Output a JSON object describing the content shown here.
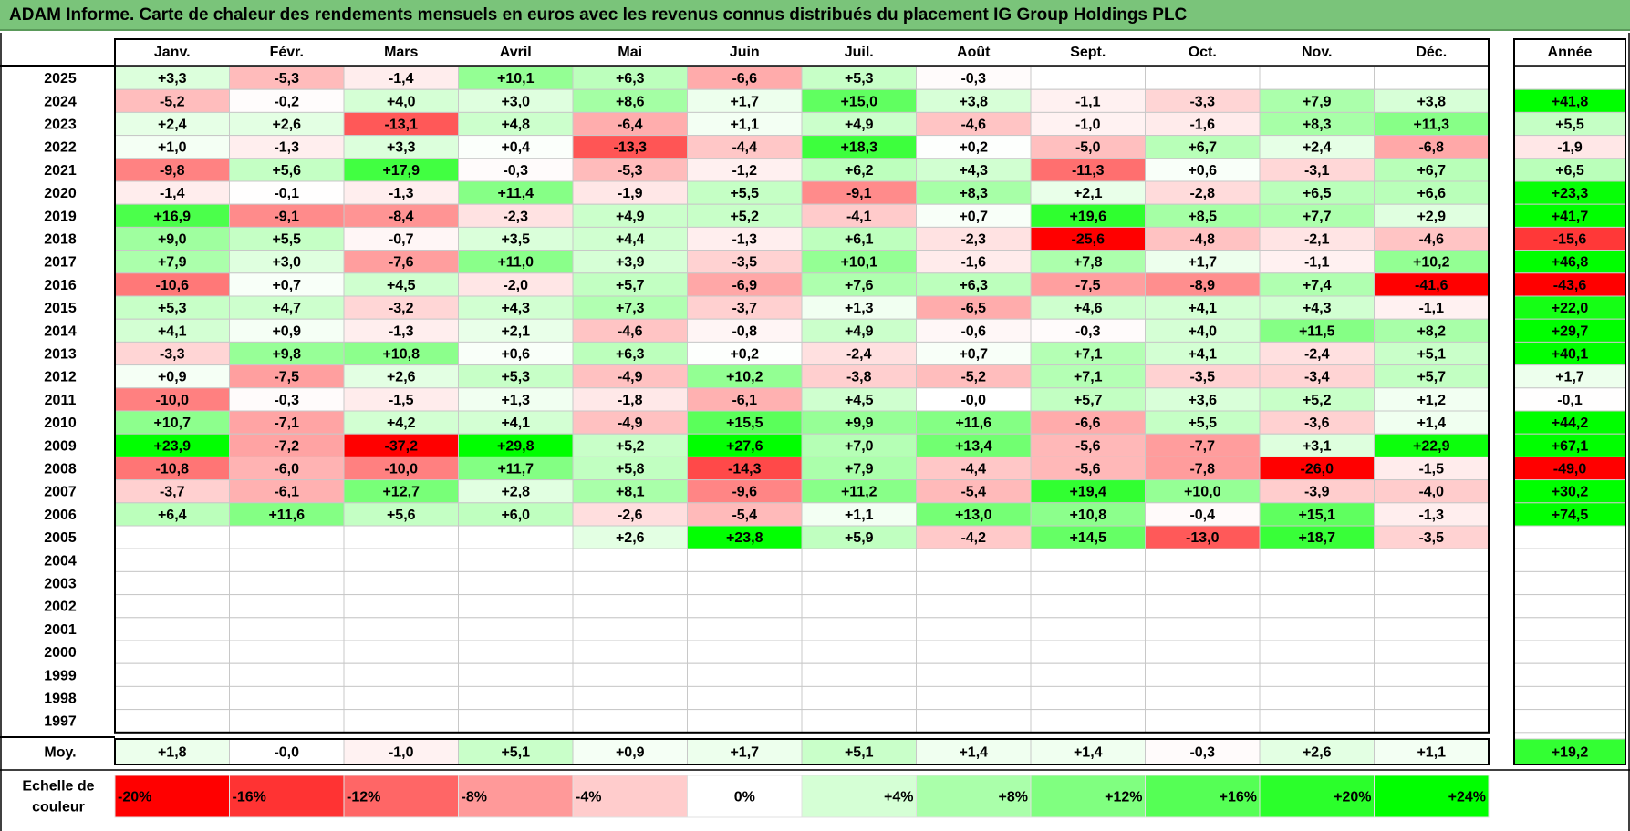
{
  "title": "ADAM Informe. Carte de chaleur des rendements mensuels en euros avec les revenus connus distribués du placement IG Group Holdings PLC",
  "months": [
    "Janv.",
    "Févr.",
    "Mars",
    "Avril",
    "Mai",
    "Juin",
    "Juil.",
    "Août",
    "Sept.",
    "Oct.",
    "Nov.",
    "Déc."
  ],
  "year_column_label": "Année",
  "avg_row_label": "Moy.",
  "scale_label_line1": "Echelle de",
  "scale_label_line2": "couleur",
  "colors": {
    "negative_max": "#ff0000",
    "neutral": "#ffffff",
    "positive_max": "#00ff00",
    "title_bar": "#7ac47a"
  },
  "chart_data": {
    "type": "heatmap",
    "unit": "%",
    "color_scale_min": -20,
    "color_scale_max": 24,
    "rows": [
      {
        "year": "2025",
        "values": [
          "+3,3",
          "-5,3",
          "-1,4",
          "+10,1",
          "+6,3",
          "-6,6",
          "+5,3",
          "-0,3",
          "",
          "",
          "",
          ""
        ],
        "annual": ""
      },
      {
        "year": "2024",
        "values": [
          "-5,2",
          "-0,2",
          "+4,0",
          "+3,0",
          "+8,6",
          "+1,7",
          "+15,0",
          "+3,8",
          "-1,1",
          "-3,3",
          "+7,9",
          "+3,8"
        ],
        "annual": "+41,8"
      },
      {
        "year": "2023",
        "values": [
          "+2,4",
          "+2,6",
          "-13,1",
          "+4,8",
          "-6,4",
          "+1,1",
          "+4,9",
          "-4,6",
          "-1,0",
          "-1,6",
          "+8,3",
          "+11,3"
        ],
        "annual": "+5,5"
      },
      {
        "year": "2022",
        "values": [
          "+1,0",
          "-1,3",
          "+3,3",
          "+0,4",
          "-13,3",
          "-4,4",
          "+18,3",
          "+0,2",
          "-5,0",
          "+6,7",
          "+2,4",
          "-6,8"
        ],
        "annual": "-1,9"
      },
      {
        "year": "2021",
        "values": [
          "-9,8",
          "+5,6",
          "+17,9",
          "-0,3",
          "-5,3",
          "-1,2",
          "+6,2",
          "+4,3",
          "-11,3",
          "+0,6",
          "-3,1",
          "+6,7"
        ],
        "annual": "+6,5"
      },
      {
        "year": "2020",
        "values": [
          "-1,4",
          "-0,1",
          "-1,3",
          "+11,4",
          "-1,9",
          "+5,5",
          "-9,1",
          "+8,3",
          "+2,1",
          "-2,8",
          "+6,5",
          "+6,6"
        ],
        "annual": "+23,3"
      },
      {
        "year": "2019",
        "values": [
          "+16,9",
          "-9,1",
          "-8,4",
          "-2,3",
          "+4,9",
          "+5,2",
          "-4,1",
          "+0,7",
          "+19,6",
          "+8,5",
          "+7,7",
          "+2,9"
        ],
        "annual": "+41,7"
      },
      {
        "year": "2018",
        "values": [
          "+9,0",
          "+5,5",
          "-0,7",
          "+3,5",
          "+4,4",
          "-1,3",
          "+6,1",
          "-2,3",
          "-25,6",
          "-4,8",
          "-2,1",
          "-4,6"
        ],
        "annual": "-15,6"
      },
      {
        "year": "2017",
        "values": [
          "+7,9",
          "+3,0",
          "-7,6",
          "+11,0",
          "+3,9",
          "-3,5",
          "+10,1",
          "-1,6",
          "+7,8",
          "+1,7",
          "-1,1",
          "+10,2"
        ],
        "annual": "+46,8"
      },
      {
        "year": "2016",
        "values": [
          "-10,6",
          "+0,7",
          "+4,5",
          "-2,0",
          "+5,7",
          "-6,9",
          "+7,6",
          "+6,3",
          "-7,5",
          "-8,9",
          "+7,4",
          "-41,6"
        ],
        "annual": "-43,6"
      },
      {
        "year": "2015",
        "values": [
          "+5,3",
          "+4,7",
          "-3,2",
          "+4,3",
          "+7,3",
          "-3,7",
          "+1,3",
          "-6,5",
          "+4,6",
          "+4,1",
          "+4,3",
          "-1,1"
        ],
        "annual": "+22,0"
      },
      {
        "year": "2014",
        "values": [
          "+4,1",
          "+0,9",
          "-1,3",
          "+2,1",
          "-4,6",
          "-0,8",
          "+4,9",
          "-0,6",
          "-0,3",
          "+4,0",
          "+11,5",
          "+8,2"
        ],
        "annual": "+29,7"
      },
      {
        "year": "2013",
        "values": [
          "-3,3",
          "+9,8",
          "+10,8",
          "+0,6",
          "+6,3",
          "+0,2",
          "-2,4",
          "+0,7",
          "+7,1",
          "+4,1",
          "-2,4",
          "+5,1"
        ],
        "annual": "+40,1"
      },
      {
        "year": "2012",
        "values": [
          "+0,9",
          "-7,5",
          "+2,6",
          "+5,3",
          "-4,9",
          "+10,2",
          "-3,8",
          "-5,2",
          "+7,1",
          "-3,5",
          "-3,4",
          "+5,7"
        ],
        "annual": "+1,7"
      },
      {
        "year": "2011",
        "values": [
          "-10,0",
          "-0,3",
          "-1,5",
          "+1,3",
          "-1,8",
          "-6,1",
          "+4,5",
          "-0,0",
          "+5,7",
          "+3,6",
          "+5,2",
          "+1,2"
        ],
        "annual": "-0,1"
      },
      {
        "year": "2010",
        "values": [
          "+10,7",
          "-7,1",
          "+4,2",
          "+4,1",
          "-4,9",
          "+15,5",
          "+9,9",
          "+11,6",
          "-6,6",
          "+5,5",
          "-3,6",
          "+1,4"
        ],
        "annual": "+44,2"
      },
      {
        "year": "2009",
        "values": [
          "+23,9",
          "-7,2",
          "-37,2",
          "+29,8",
          "+5,2",
          "+27,6",
          "+7,0",
          "+13,4",
          "-5,6",
          "-7,7",
          "+3,1",
          "+22,9"
        ],
        "annual": "+67,1"
      },
      {
        "year": "2008",
        "values": [
          "-10,8",
          "-6,0",
          "-10,0",
          "+11,7",
          "+5,8",
          "-14,3",
          "+7,9",
          "-4,4",
          "-5,6",
          "-7,8",
          "-26,0",
          "-1,5"
        ],
        "annual": "-49,0"
      },
      {
        "year": "2007",
        "values": [
          "-3,7",
          "-6,1",
          "+12,7",
          "+2,8",
          "+8,1",
          "-9,6",
          "+11,2",
          "-5,4",
          "+19,4",
          "+10,0",
          "-3,9",
          "-4,0"
        ],
        "annual": "+30,2"
      },
      {
        "year": "2006",
        "values": [
          "+6,4",
          "+11,6",
          "+5,6",
          "+6,0",
          "-2,6",
          "-5,4",
          "+1,1",
          "+13,0",
          "+10,8",
          "-0,4",
          "+15,1",
          "-1,3"
        ],
        "annual": "+74,5"
      },
      {
        "year": "2005",
        "values": [
          "",
          "",
          "",
          "",
          "+2,6",
          "+23,8",
          "+5,9",
          "-4,2",
          "+14,5",
          "-13,0",
          "+18,7",
          "-3,5"
        ],
        "annual": ""
      },
      {
        "year": "2004",
        "values": [
          "",
          "",
          "",
          "",
          "",
          "",
          "",
          "",
          "",
          "",
          "",
          ""
        ],
        "annual": ""
      },
      {
        "year": "2003",
        "values": [
          "",
          "",
          "",
          "",
          "",
          "",
          "",
          "",
          "",
          "",
          "",
          ""
        ],
        "annual": ""
      },
      {
        "year": "2002",
        "values": [
          "",
          "",
          "",
          "",
          "",
          "",
          "",
          "",
          "",
          "",
          "",
          ""
        ],
        "annual": ""
      },
      {
        "year": "2001",
        "values": [
          "",
          "",
          "",
          "",
          "",
          "",
          "",
          "",
          "",
          "",
          "",
          ""
        ],
        "annual": ""
      },
      {
        "year": "2000",
        "values": [
          "",
          "",
          "",
          "",
          "",
          "",
          "",
          "",
          "",
          "",
          "",
          ""
        ],
        "annual": ""
      },
      {
        "year": "1999",
        "values": [
          "",
          "",
          "",
          "",
          "",
          "",
          "",
          "",
          "",
          "",
          "",
          ""
        ],
        "annual": ""
      },
      {
        "year": "1998",
        "values": [
          "",
          "",
          "",
          "",
          "",
          "",
          "",
          "",
          "",
          "",
          "",
          ""
        ],
        "annual": ""
      },
      {
        "year": "1997",
        "values": [
          "",
          "",
          "",
          "",
          "",
          "",
          "",
          "",
          "",
          "",
          "",
          ""
        ],
        "annual": ""
      }
    ],
    "average": {
      "values": [
        "+1,8",
        "-0,0",
        "-1,0",
        "+5,1",
        "+0,9",
        "+1,7",
        "+5,1",
        "+1,4",
        "+1,4",
        "-0,3",
        "+2,6",
        "+1,1"
      ],
      "annual": "+19,2"
    },
    "scale": [
      "-20%",
      "-16%",
      "-12%",
      "-8%",
      "-4%",
      "0%",
      "+4%",
      "+8%",
      "+12%",
      "+16%",
      "+20%",
      "+24%"
    ],
    "scale_values": [
      -20,
      -16,
      -12,
      -8,
      -4,
      0,
      4,
      8,
      12,
      16,
      20,
      24
    ]
  }
}
